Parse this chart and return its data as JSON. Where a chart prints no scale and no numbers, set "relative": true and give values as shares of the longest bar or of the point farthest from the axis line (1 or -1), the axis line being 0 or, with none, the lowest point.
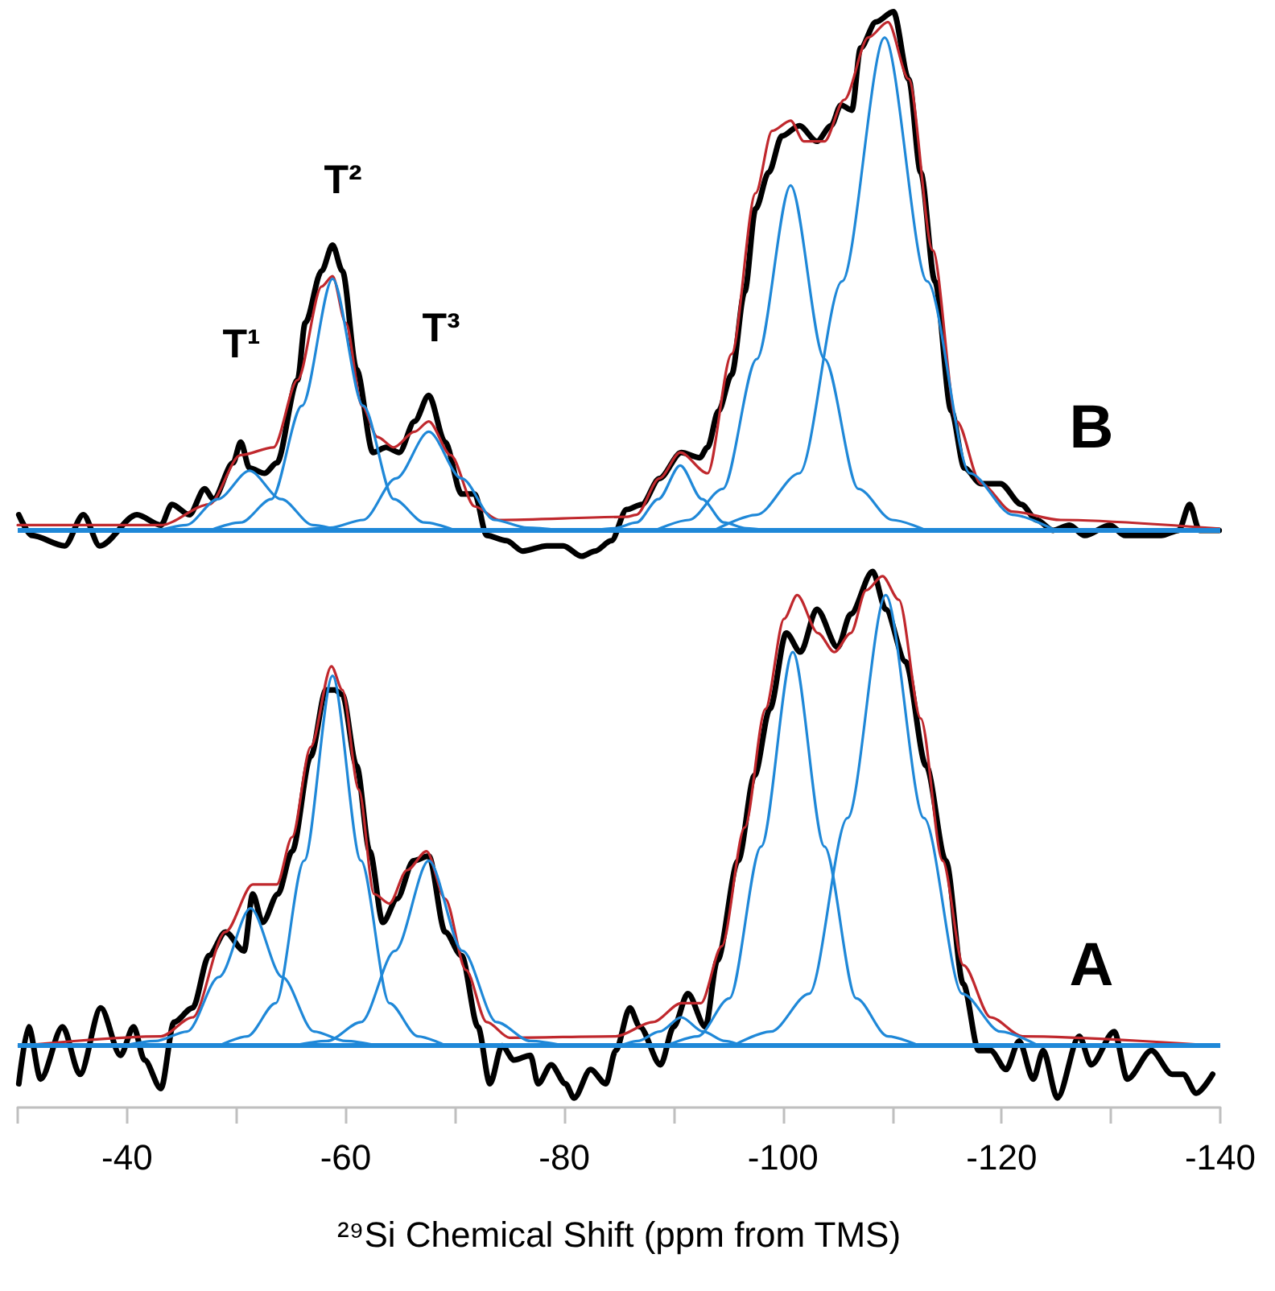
{
  "chart_data": [
    {
      "type": "line",
      "relative": true,
      "xlim": [
        -30,
        -140
      ],
      "tick_labels": false,
      "annotations": [
        "T¹",
        "T²",
        "T³",
        "B"
      ],
      "ref_lines": [
        {
          "axis": "y",
          "value": 0,
          "label": null,
          "color": "#1f88d8"
        }
      ],
      "series": [
        {
          "color": "#000000",
          "x": [
            -30.1,
            -31.3,
            -34.3,
            -36.0,
            -37.5,
            -40.9,
            -43.1,
            -44.1,
            -45.7,
            -47.1,
            -47.9,
            -49.7,
            -50.4,
            -51.2,
            -52.6,
            -53.7,
            -55.6,
            -56.3,
            -57.8,
            -58.8,
            -59.7,
            -61.0,
            -62.5,
            -63.7,
            -64.9,
            -66.3,
            -67.6,
            -69.1,
            -70.6,
            -71.8,
            -72.9,
            -74.7,
            -76.2,
            -78.4,
            -79.9,
            -81.6,
            -82.8,
            -84.3,
            -85.7,
            -87.1,
            -88.7,
            -90.7,
            -92.4,
            -93.1,
            -94.1,
            -95.3,
            -96.5,
            -97.5,
            -98.7,
            -99.9,
            -101.5,
            -103.1,
            -104.4,
            -105.3,
            -106.3,
            -107.1,
            -108.5,
            -110.1,
            -111.5,
            -112.6,
            -113.9,
            -115.4,
            -116.6,
            -118.1,
            -119.9,
            -121.8,
            -123.2,
            -124.7,
            -126.2,
            -127.6,
            -129.9,
            -131.3,
            -133.1,
            -134.6,
            -136.2,
            -137.2,
            -138.1,
            -139.9
          ],
          "values": [
            0.03,
            -0.01,
            -0.03,
            0.03,
            -0.03,
            0.03,
            0.01,
            0.05,
            0.03,
            0.08,
            0.06,
            0.13,
            0.17,
            0.12,
            0.11,
            0.13,
            0.29,
            0.4,
            0.5,
            0.55,
            0.5,
            0.31,
            0.15,
            0.16,
            0.15,
            0.21,
            0.26,
            0.17,
            0.07,
            0.07,
            -0.01,
            -0.02,
            -0.04,
            -0.03,
            -0.03,
            -0.05,
            -0.04,
            -0.02,
            0.04,
            0.05,
            0.1,
            0.15,
            0.14,
            0.16,
            0.23,
            0.3,
            0.46,
            0.62,
            0.69,
            0.76,
            0.78,
            0.75,
            0.78,
            0.82,
            0.81,
            0.93,
            0.98,
            1.0,
            0.87,
            0.69,
            0.48,
            0.23,
            0.12,
            0.09,
            0.09,
            0.05,
            0.02,
            0.0,
            0.01,
            -0.01,
            0.01,
            -0.01,
            -0.01,
            -0.01,
            0.0,
            0.05,
            0.0,
            0.0
          ]
        },
        {
          "color": "#c0282d",
          "x": [
            -30.0,
            -43.1,
            -47.5,
            -50.4,
            -53.4,
            -55.6,
            -57.8,
            -58.8,
            -60.0,
            -61.5,
            -62.9,
            -64.4,
            -66.3,
            -67.6,
            -69.6,
            -71.8,
            -74.0,
            -85.7,
            -86.6,
            -88.7,
            -90.6,
            -93.1,
            -95.3,
            -97.5,
            -99.0,
            -100.7,
            -101.9,
            -103.8,
            -105.6,
            -107.8,
            -109.6,
            -111.5,
            -113.7,
            -115.9,
            -118.1,
            -121.0,
            -125.4,
            -139.9
          ],
          "values": [
            0.01,
            0.01,
            0.05,
            0.145,
            0.16,
            0.29,
            0.47,
            0.49,
            0.4,
            0.24,
            0.18,
            0.16,
            0.19,
            0.21,
            0.145,
            0.046,
            0.02,
            0.026,
            0.03,
            0.1,
            0.15,
            0.11,
            0.34,
            0.65,
            0.77,
            0.79,
            0.75,
            0.75,
            0.83,
            0.95,
            0.98,
            0.87,
            0.54,
            0.21,
            0.09,
            0.036,
            0.02,
            0.003
          ]
        },
        {
          "color": "#1f88d8",
          "x": [
            -39.6,
            -42.5,
            -45.4,
            -48.3,
            -51.2,
            -54.1,
            -57.0,
            -59.9,
            -62.8
          ],
          "values": [
            0,
            0,
            0.01,
            0.06,
            0.115,
            0.06,
            0.01,
            0,
            0
          ]
        },
        {
          "color": "#1f88d8",
          "x": [
            -47.6,
            -50.4,
            -53.2,
            -56.0,
            -58.8,
            -61.6,
            -64.4,
            -67.2,
            -70.0
          ],
          "values": [
            0,
            0.015,
            0.06,
            0.24,
            0.485,
            0.24,
            0.06,
            0.015,
            0
          ]
        },
        {
          "color": "#1f88d8",
          "x": [
            -55.6,
            -58.6,
            -61.6,
            -64.6,
            -67.6,
            -70.6,
            -73.6,
            -76.6,
            -79.6
          ],
          "values": [
            0,
            0.005,
            0.02,
            0.1,
            0.19,
            0.1,
            0.02,
            0.005,
            0
          ]
        },
        {
          "color": "#1f88d8",
          "x": [
            -82.6,
            -84.6,
            -86.6,
            -88.6,
            -90.6,
            -92.6,
            -94.6,
            -96.6,
            -98.6
          ],
          "values": [
            0,
            0.004,
            0.015,
            0.06,
            0.125,
            0.06,
            0.015,
            0.004,
            0
          ]
        },
        {
          "color": "#1f88d8",
          "x": [
            -88.3,
            -91.4,
            -94.5,
            -97.6,
            -100.7,
            -103.8,
            -106.9,
            -110.0,
            -113.1
          ],
          "values": [
            0,
            0.02,
            0.08,
            0.33,
            0.665,
            0.33,
            0.08,
            0.02,
            0
          ]
        },
        {
          "color": "#1f88d8",
          "x": [
            -93.7,
            -97.6,
            -101.5,
            -105.4,
            -109.3,
            -113.2,
            -117.1,
            -121.0,
            -124.9
          ],
          "values": [
            0,
            0.03,
            0.11,
            0.48,
            0.95,
            0.48,
            0.11,
            0.03,
            0
          ]
        }
      ]
    },
    {
      "type": "line",
      "relative": true,
      "xlim": [
        -30,
        -140
      ],
      "xlabel": "²⁹Si Chemical Shift (ppm from TMS)",
      "xticks": [
        {
          "value": -30,
          "label": null
        },
        -40,
        {
          "value": -50,
          "label": null
        },
        -60,
        {
          "value": -70,
          "label": null
        },
        -80,
        {
          "value": -90,
          "label": null
        },
        -100,
        {
          "value": -110,
          "label": null
        },
        -120,
        {
          "value": -130,
          "label": null
        },
        -140
      ],
      "annotations": [
        "A"
      ],
      "ref_lines": [
        {
          "axis": "y",
          "value": 0,
          "label": null,
          "color": "#1f88d8"
        }
      ],
      "series": [
        {
          "color": "#000000",
          "x": [
            -30.1,
            -31.0,
            -32.1,
            -34.1,
            -35.7,
            -37.6,
            -39.4,
            -40.6,
            -41.6,
            -43.1,
            -44.3,
            -46.0,
            -47.5,
            -49.0,
            -50.7,
            -51.5,
            -52.4,
            -53.8,
            -55.1,
            -56.8,
            -58.2,
            -59.0,
            -59.7,
            -61.0,
            -62.2,
            -63.4,
            -64.7,
            -66.2,
            -67.6,
            -69.1,
            -70.6,
            -72.1,
            -73.2,
            -74.3,
            -75.4,
            -76.9,
            -77.6,
            -78.8,
            -80.1,
            -80.9,
            -82.4,
            -83.8,
            -84.7,
            -86.0,
            -86.9,
            -88.8,
            -90.0,
            -91.3,
            -92.9,
            -94.0,
            -95.9,
            -97.4,
            -98.8,
            -100.3,
            -101.6,
            -103.1,
            -105.0,
            -106.2,
            -108.2,
            -109.4,
            -111.2,
            -113.1,
            -114.9,
            -116.5,
            -117.9,
            -119.0,
            -120.4,
            -121.6,
            -122.9,
            -123.8,
            -125.1,
            -127.1,
            -128.2,
            -130.3,
            -131.5,
            -133.7,
            -135.6,
            -136.6,
            -137.8,
            -139.3
          ],
          "values": [
            -0.08,
            0.04,
            -0.07,
            0.04,
            -0.06,
            0.08,
            -0.02,
            0.04,
            -0.03,
            -0.09,
            0.05,
            0.08,
            0.19,
            0.24,
            0.2,
            0.32,
            0.26,
            0.32,
            0.41,
            0.61,
            0.75,
            0.75,
            0.74,
            0.59,
            0.41,
            0.26,
            0.31,
            0.39,
            0.4,
            0.24,
            0.19,
            0.04,
            -0.08,
            0.0,
            -0.03,
            -0.02,
            -0.08,
            -0.04,
            -0.08,
            -0.11,
            -0.05,
            -0.08,
            -0.01,
            0.08,
            0.04,
            -0.04,
            0.04,
            0.11,
            0.04,
            0.18,
            0.39,
            0.57,
            0.71,
            0.87,
            0.83,
            0.92,
            0.84,
            0.91,
            1.0,
            0.92,
            0.81,
            0.59,
            0.39,
            0.13,
            -0.01,
            -0.01,
            -0.05,
            0.01,
            -0.07,
            -0.01,
            -0.11,
            0.02,
            -0.04,
            0.03,
            -0.07,
            -0.01,
            -0.06,
            -0.06,
            -0.1,
            -0.06
          ]
        },
        {
          "color": "#c0282d",
          "x": [
            -30.1,
            -43.1,
            -46.0,
            -49.0,
            -51.5,
            -53.7,
            -55.1,
            -56.8,
            -58.7,
            -59.7,
            -61.2,
            -62.6,
            -64.0,
            -65.6,
            -67.4,
            -69.1,
            -71.0,
            -72.9,
            -75.0,
            -84.7,
            -88.1,
            -90.7,
            -92.5,
            -94.4,
            -96.5,
            -98.4,
            -100.1,
            -101.3,
            -103.2,
            -104.7,
            -106.2,
            -107.6,
            -109.1,
            -110.6,
            -112.6,
            -114.6,
            -116.5,
            -119.0,
            -121.9,
            -139.9
          ],
          "values": [
            0,
            0.02,
            0.06,
            0.24,
            0.34,
            0.34,
            0.44,
            0.63,
            0.8,
            0.75,
            0.54,
            0.32,
            0.3,
            0.37,
            0.41,
            0.31,
            0.16,
            0.05,
            0.017,
            0.02,
            0.05,
            0.09,
            0.09,
            0.21,
            0.46,
            0.71,
            0.9,
            0.95,
            0.87,
            0.83,
            0.87,
            0.96,
            0.99,
            0.94,
            0.69,
            0.39,
            0.17,
            0.06,
            0.02,
            0
          ]
        },
        {
          "color": "#1f88d8",
          "x": [
            -39.7,
            -42.6,
            -45.5,
            -48.4,
            -51.3,
            -54.2,
            -57.1,
            -60.0,
            -62.9
          ],
          "values": [
            0,
            0.01,
            0.03,
            0.145,
            0.29,
            0.145,
            0.03,
            0.01,
            0
          ]
        },
        {
          "color": "#1f88d8",
          "x": [
            -48.4,
            -51.0,
            -53.6,
            -56.2,
            -58.8,
            -61.4,
            -64.0,
            -66.6,
            -69.2
          ],
          "values": [
            0,
            0.02,
            0.09,
            0.39,
            0.78,
            0.39,
            0.09,
            0.02,
            0
          ]
        },
        {
          "color": "#1f88d8",
          "x": [
            -55.2,
            -58.3,
            -61.4,
            -64.5,
            -67.6,
            -70.7,
            -73.8,
            -76.9,
            -80.0
          ],
          "values": [
            0,
            0.01,
            0.05,
            0.2,
            0.39,
            0.2,
            0.05,
            0.01,
            0
          ]
        },
        {
          "color": "#1f88d8",
          "x": [
            -82.7,
            -84.7,
            -86.7,
            -88.7,
            -90.7,
            -92.7,
            -94.7,
            -96.7,
            -98.7
          ],
          "values": [
            0,
            0,
            0.01,
            0.03,
            0.06,
            0.03,
            0.01,
            0,
            0
          ]
        },
        {
          "color": "#1f88d8",
          "x": [
            -89.3,
            -92.2,
            -95.1,
            -98.0,
            -100.9,
            -103.8,
            -106.7,
            -109.6,
            -112.5
          ],
          "values": [
            0,
            0.02,
            0.1,
            0.42,
            0.83,
            0.42,
            0.1,
            0.02,
            0
          ]
        },
        {
          "color": "#1f88d8",
          "x": [
            -95.4,
            -98.9,
            -102.4,
            -105.9,
            -109.4,
            -112.9,
            -116.4,
            -119.9,
            -123.4
          ],
          "values": [
            0,
            0.03,
            0.11,
            0.48,
            0.95,
            0.48,
            0.11,
            0.03,
            0
          ]
        }
      ]
    }
  ]
}
